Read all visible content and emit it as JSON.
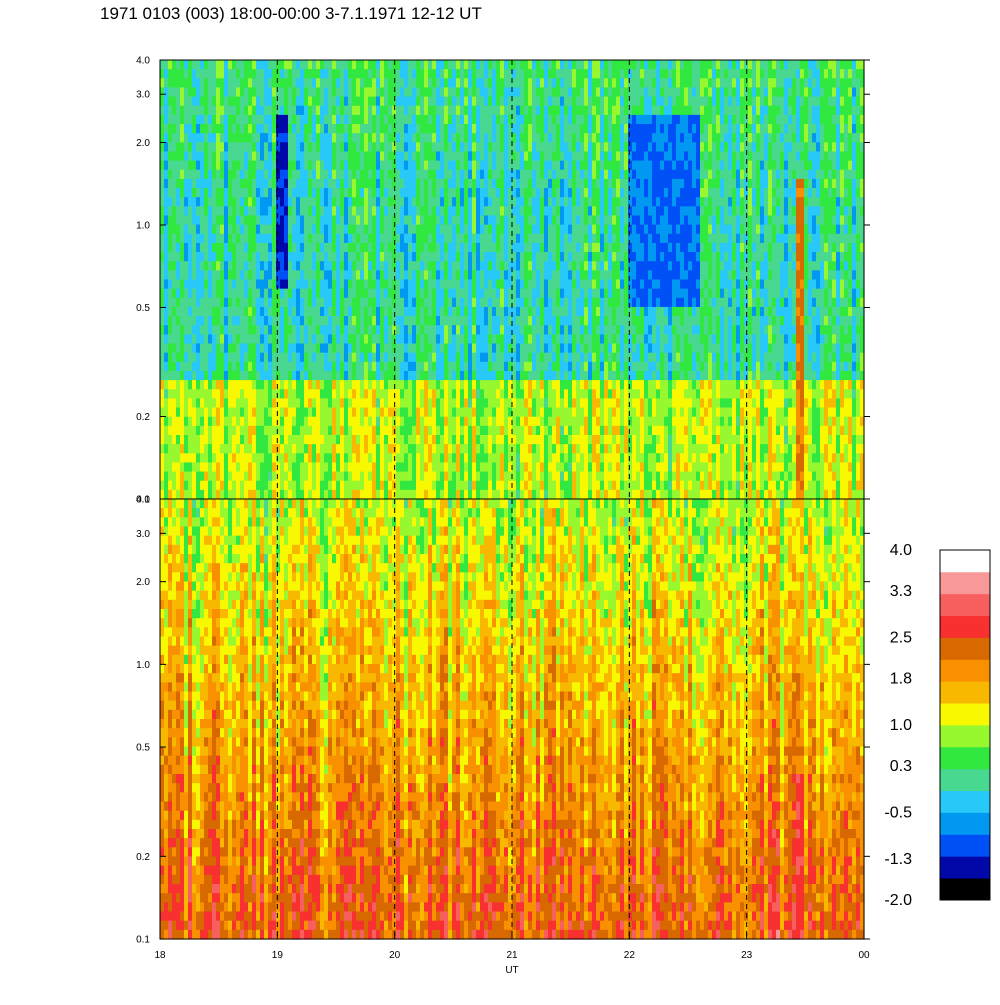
{
  "header": {
    "title": "1971 0103 (003) 18:00-00:00 3-7.1.1971  12-12 UT"
  },
  "chart_data": [
    {
      "type": "heatmap",
      "panel": "upper",
      "x_axis": {
        "range": [
          18,
          24
        ],
        "ticks": [],
        "label": ""
      },
      "y_axis": {
        "scale": "log",
        "range": [
          0.1,
          4.0
        ],
        "tick_labels": [
          "0.1",
          "0.2",
          "0.5",
          "1.0",
          "2.0",
          "3.0",
          "4.0"
        ],
        "tick_values": [
          0.1,
          0.2,
          0.5,
          1.0,
          2.0,
          3.0,
          4.0
        ]
      },
      "vertical_dashed_lines_at": [
        19,
        20,
        21,
        22,
        23
      ],
      "dominant_level_range": [
        -0.5,
        1.0
      ],
      "notable_features": [
        {
          "x_start": 19.0,
          "x_end": 19.1,
          "y_start": 0.6,
          "y_end": 2.5,
          "level": -1.3
        },
        {
          "x_start": 22.0,
          "x_end": 22.6,
          "y_start": 0.5,
          "y_end": 2.5,
          "level": -0.9
        },
        {
          "x_start": 23.42,
          "x_end": 23.5,
          "y_start": 0.1,
          "y_end": 1.5,
          "level": 2.2
        }
      ]
    },
    {
      "type": "heatmap",
      "panel": "lower",
      "x_axis": {
        "range": [
          18,
          24
        ],
        "ticks": [
          "18",
          "19",
          "20",
          "21",
          "22",
          "23",
          "00"
        ],
        "tick_values": [
          18,
          19,
          20,
          21,
          22,
          23,
          24
        ],
        "label": "UT"
      },
      "y_axis": {
        "scale": "log",
        "range": [
          0.1,
          4.0
        ],
        "tick_labels": [
          "0.1",
          "0.2",
          "0.5",
          "1.0",
          "2.0",
          "3.0",
          "4.0"
        ],
        "tick_values": [
          0.1,
          0.2,
          0.5,
          1.0,
          2.0,
          3.0,
          4.0
        ]
      },
      "vertical_dashed_lines_at": [
        19,
        20,
        21,
        22,
        23
      ],
      "dominant_level_range": [
        0.3,
        2.1
      ],
      "notable_features": [
        {
          "x_start": 23.42,
          "x_end": 23.5,
          "y_start": 0.1,
          "y_end": 0.4,
          "level": 2.8
        }
      ]
    }
  ],
  "colorbar": {
    "labels": [
      "4.0",
      "3.3",
      "2.5",
      "1.8",
      "1.0",
      "0.3",
      "-0.5",
      "-1.3",
      "-2.0"
    ],
    "label_values": [
      4.0,
      3.3,
      2.5,
      1.8,
      1.0,
      0.3,
      -0.5,
      -1.3,
      -2.0
    ],
    "range": [
      -2.0,
      4.0
    ],
    "colors": [
      "#000000",
      "#0008a8",
      "#0050f8",
      "#0098f0",
      "#28c8f8",
      "#48d890",
      "#30e840",
      "#98f830",
      "#f8f800",
      "#f8b800",
      "#f89000",
      "#d86800",
      "#f83030",
      "#f86060",
      "#f89898",
      "#ffffff"
    ]
  }
}
